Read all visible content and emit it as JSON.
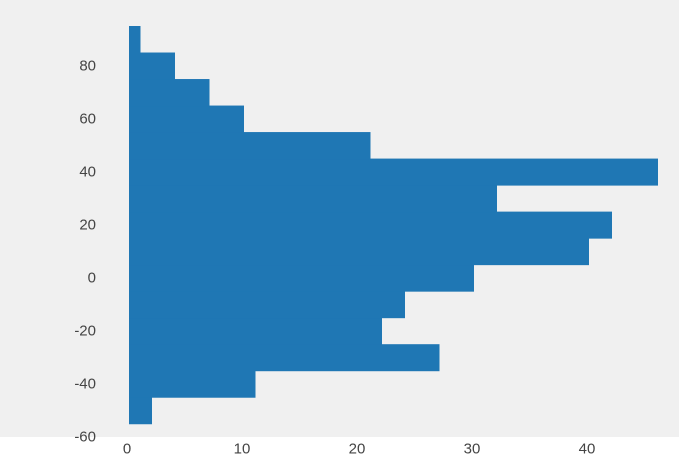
{
  "chart_data": {
    "type": "bar",
    "orientation": "horizontal",
    "bins": [
      {
        "y0": -55,
        "y1": -45,
        "count": 2
      },
      {
        "y0": -45,
        "y1": -35,
        "count": 11
      },
      {
        "y0": -35,
        "y1": -25,
        "count": 27
      },
      {
        "y0": -25,
        "y1": -15,
        "count": 22
      },
      {
        "y0": -15,
        "y1": -5,
        "count": 24
      },
      {
        "y0": -5,
        "y1": 5,
        "count": 30
      },
      {
        "y0": 5,
        "y1": 15,
        "count": 40
      },
      {
        "y0": 15,
        "y1": 25,
        "count": 42
      },
      {
        "y0": 25,
        "y1": 35,
        "count": 32
      },
      {
        "y0": 35,
        "y1": 45,
        "count": 46
      },
      {
        "y0": 45,
        "y1": 55,
        "count": 21
      },
      {
        "y0": 55,
        "y1": 65,
        "count": 10
      },
      {
        "y0": 65,
        "y1": 75,
        "count": 7
      },
      {
        "y0": 75,
        "y1": 85,
        "count": 4
      },
      {
        "y0": 85,
        "y1": 95,
        "count": 1
      }
    ],
    "xlim": [
      0,
      46
    ],
    "ylim": [
      -60,
      95
    ],
    "xticks": [
      "0",
      "10",
      "20",
      "30",
      "40"
    ],
    "yticks": [
      "80",
      "60",
      "40",
      "20",
      "0",
      "-20",
      "-40",
      "-60"
    ],
    "xlabel": "",
    "ylabel": "",
    "title": "",
    "grid": false,
    "colors": {
      "bar": "#1f77b4",
      "background": "#f0f0f0",
      "tick_text": "#444444"
    }
  }
}
